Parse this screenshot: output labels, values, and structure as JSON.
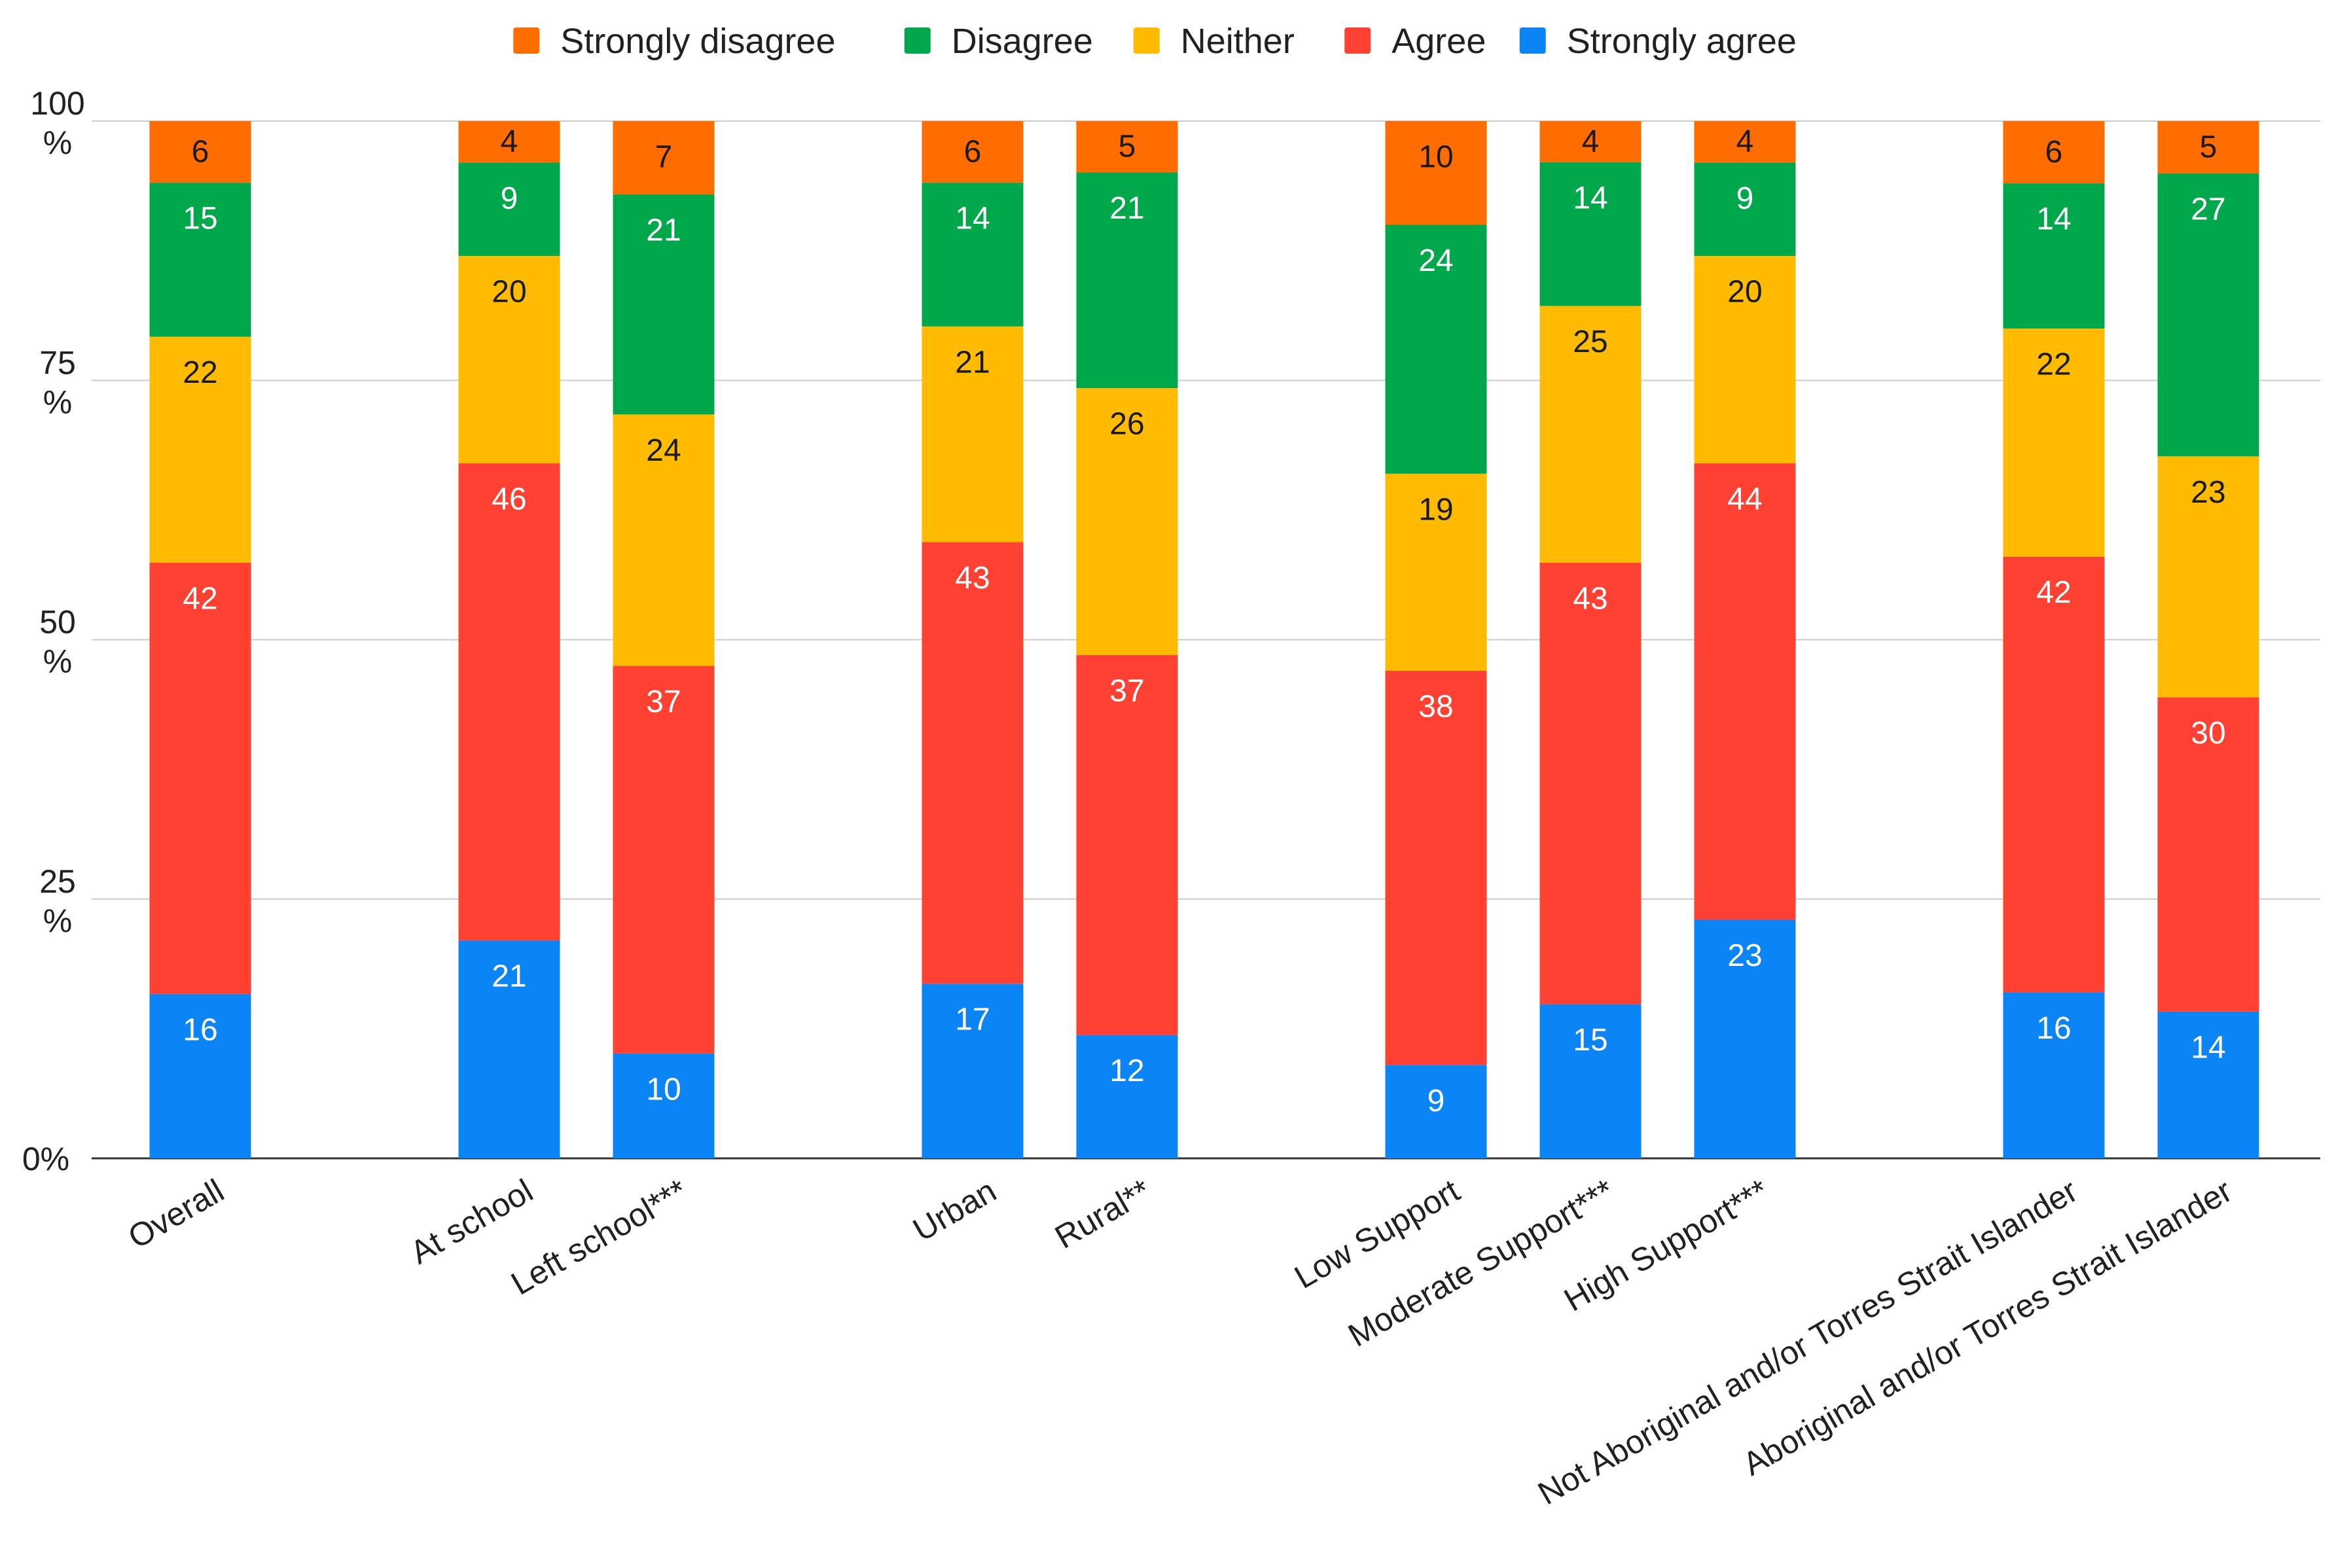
{
  "chart_data": {
    "type": "bar",
    "stacked": true,
    "title": "",
    "xlabel": "",
    "ylabel": "",
    "ylim": [
      0,
      100
    ],
    "yticks": [
      {
        "value": 0,
        "line1": "0%",
        "line2": ""
      },
      {
        "value": 25,
        "line1": "25",
        "line2": "%"
      },
      {
        "value": 50,
        "line1": "50",
        "line2": "%"
      },
      {
        "value": 75,
        "line1": "75",
        "line2": "%"
      },
      {
        "value": 100,
        "line1": "100",
        "line2": "%"
      }
    ],
    "grid": true,
    "legend_position": "top-center",
    "categories": [
      "Overall",
      "At school",
      "Left school***",
      "Urban",
      "Rural**",
      "Low Support",
      "Moderate Support***",
      "High Support***",
      "Not Aboriginal and/or Torres Strait Islander",
      "Aboriginal and/or Torres Strait Islander"
    ],
    "groups": [
      [
        0
      ],
      [
        1,
        2
      ],
      [
        3,
        4
      ],
      [
        5,
        6,
        7
      ],
      [
        8,
        9
      ]
    ],
    "series": [
      {
        "name": "Strongly agree",
        "color": "#0b84f5",
        "label_color": "#ffffff",
        "values": [
          16,
          21,
          10,
          17,
          12,
          9,
          15,
          23,
          16,
          14
        ]
      },
      {
        "name": "Agree",
        "color": "#ff4133",
        "label_color": "#ffffff",
        "values": [
          42,
          46,
          37,
          43,
          37,
          38,
          43,
          44,
          42,
          30
        ]
      },
      {
        "name": "Neither",
        "color": "#ffbb00",
        "label_color": "#1a1a1a",
        "values": [
          22,
          20,
          24,
          21,
          26,
          19,
          25,
          20,
          22,
          23
        ]
      },
      {
        "name": "Disagree",
        "color": "#00a84b",
        "label_color": "#ffffff",
        "values": [
          15,
          9,
          21,
          14,
          21,
          24,
          14,
          9,
          14,
          27
        ]
      },
      {
        "name": "Strongly disagree",
        "color": "#ff6d00",
        "label_color": "#1a1a1a",
        "values": [
          6,
          4,
          7,
          6,
          5,
          10,
          4,
          4,
          6,
          5
        ]
      }
    ],
    "legend_order": [
      "Strongly disagree",
      "Disagree",
      "Neither",
      "Agree",
      "Strongly agree"
    ]
  }
}
